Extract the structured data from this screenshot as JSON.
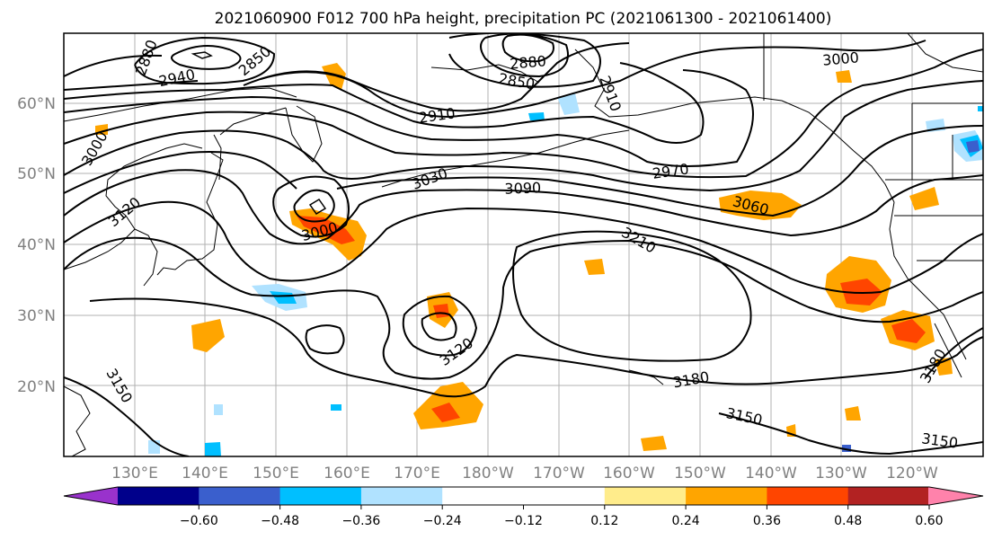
{
  "title": "2021060900 F012 700 hPa height, precipitation PC (2021061300 - 2021061400)",
  "map": {
    "lat_labels": [
      "60°N",
      "50°N",
      "40°N",
      "30°N",
      "20°N"
    ],
    "lon_labels": [
      "130°E",
      "140°E",
      "150°E",
      "160°E",
      "170°E",
      "180°W",
      "170°W",
      "160°W",
      "150°W",
      "140°W",
      "130°W",
      "120°W"
    ],
    "contour_labels": [
      "2880",
      "2850",
      "2940",
      "2910",
      "2880",
      "2850",
      "2910",
      "3000",
      "3000",
      "3030",
      "3090",
      "2970",
      "3120",
      "3000",
      "3060",
      "3210",
      "3120",
      "3180",
      "3150",
      "3150",
      "3150",
      "3180"
    ],
    "contour_color": "#000000",
    "grid_color": "#b0b0b0"
  },
  "colorbar": {
    "colors": [
      "#9932cc",
      "#00008b",
      "#3a5fcd",
      "#00bfff",
      "#b0e2ff",
      "#ffffff",
      "#ffffff",
      "#ffec8b",
      "#ffa500",
      "#ff4500",
      "#b22222",
      "#ff82ab"
    ],
    "tick_labels": [
      "−0.60",
      "−0.48",
      "−0.36",
      "−0.24",
      "−0.12",
      "0.12",
      "0.24",
      "0.36",
      "0.48",
      "0.60"
    ]
  }
}
